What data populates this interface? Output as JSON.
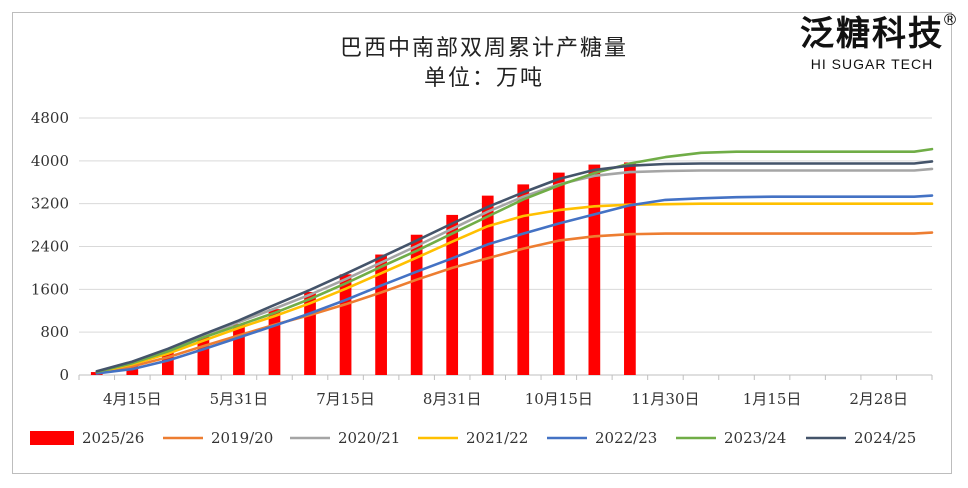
{
  "chart_data": {
    "type": "bar+line",
    "title": "巴西中南部双周累计产糖量",
    "subtitle": "单位：万吨",
    "ylim": [
      0,
      4800
    ],
    "yticks": [
      0,
      800,
      1600,
      2400,
      3200,
      4000,
      4800
    ],
    "xtick_labels": [
      "4月15日",
      "5月31日",
      "7月15日",
      "8月31日",
      "10月15日",
      "11月30日",
      "1月15日",
      "2月28日"
    ],
    "xtick_positions": [
      1,
      4,
      7,
      10,
      13,
      16,
      19,
      22
    ],
    "n_periods": 24,
    "bars": {
      "name": "2025/26",
      "color": "#ff0000",
      "values": [
        55,
        180,
        420,
        720,
        950,
        1230,
        1550,
        1880,
        2250,
        2620,
        2990,
        3350,
        3560,
        3780,
        3930,
        3970
      ]
    },
    "series": [
      {
        "name": "2019/20",
        "color": "#ed7d31",
        "values": [
          40,
          160,
          330,
          540,
          740,
          940,
          1120,
          1320,
          1540,
          1780,
          2000,
          2180,
          2360,
          2510,
          2590,
          2630,
          2640,
          2640,
          2640,
          2640,
          2640,
          2640,
          2640,
          2640,
          2660
        ]
      },
      {
        "name": "2020/21",
        "color": "#a5a5a5",
        "values": [
          60,
          220,
          450,
          720,
          990,
          1240,
          1500,
          1790,
          2100,
          2410,
          2730,
          3050,
          3330,
          3560,
          3720,
          3790,
          3810,
          3820,
          3820,
          3820,
          3820,
          3820,
          3820,
          3820,
          3850
        ]
      },
      {
        "name": "2021/22",
        "color": "#ffc000",
        "values": [
          50,
          200,
          400,
          640,
          880,
          1100,
          1340,
          1610,
          1900,
          2190,
          2490,
          2780,
          2970,
          3080,
          3150,
          3180,
          3190,
          3200,
          3200,
          3200,
          3200,
          3200,
          3200,
          3200,
          3200
        ]
      },
      {
        "name": "2022/23",
        "color": "#4472c4",
        "values": [
          30,
          110,
          270,
          480,
          700,
          920,
          1150,
          1400,
          1670,
          1930,
          2180,
          2440,
          2640,
          2830,
          3000,
          3170,
          3270,
          3300,
          3320,
          3330,
          3330,
          3330,
          3330,
          3330,
          3350
        ]
      },
      {
        "name": "2023/24",
        "color": "#70ad47",
        "values": [
          60,
          220,
          440,
          700,
          930,
          1160,
          1420,
          1710,
          2020,
          2320,
          2640,
          2960,
          3280,
          3540,
          3770,
          3950,
          4070,
          4150,
          4170,
          4170,
          4170,
          4170,
          4170,
          4170,
          4220
        ]
      },
      {
        "name": "2024/25",
        "color": "#44546a",
        "values": [
          70,
          250,
          490,
          760,
          1020,
          1310,
          1590,
          1890,
          2200,
          2510,
          2830,
          3140,
          3410,
          3660,
          3830,
          3910,
          3940,
          3950,
          3950,
          3950,
          3950,
          3950,
          3950,
          3950,
          3990
        ]
      }
    ],
    "legend": [
      "2025/26",
      "2019/20",
      "2020/21",
      "2021/22",
      "2022/23",
      "2023/24",
      "2024/25"
    ],
    "legend_position": "bottom"
  },
  "logo": {
    "name_cn": "泛糖科技",
    "name_en": "HI SUGAR TECH",
    "reg": "®"
  }
}
